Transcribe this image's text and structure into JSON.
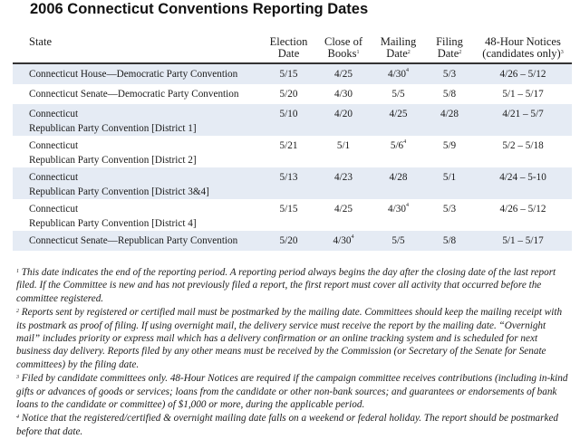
{
  "title": "2006 Connecticut Conventions Reporting Dates",
  "headers": {
    "state": "State",
    "election_a": "Election",
    "election_b": "Date",
    "close_a": "Close of",
    "close_b": "Books",
    "close_sup": "1",
    "mailing_a": "Mailing",
    "mailing_b": "Date",
    "mailing_sup": "2",
    "filing_a": "Filing",
    "filing_b": "Date",
    "filing_sup": "2",
    "notices_a": "48-Hour Notices",
    "notices_b": "(candidates only)",
    "notices_sup": "3"
  },
  "rows": [
    {
      "state_a": "Connecticut House—Democratic Party Convention",
      "state_b": "",
      "election": "5/15",
      "close": "4/25",
      "mailing": "4/30",
      "mailing_sup": "4",
      "filing": "5/3",
      "notices": "4/26 – 5/12"
    },
    {
      "state_a": "Connecticut Senate—Democratic Party Convention",
      "state_b": "",
      "election": "5/20",
      "close": "4/30",
      "mailing": "5/5",
      "mailing_sup": "",
      "filing": "5/8",
      "notices": "5/1 – 5/17"
    },
    {
      "state_a": "Connecticut",
      "state_b": "Republican Party Convention [District 1]",
      "election": "5/10",
      "close": "4/20",
      "mailing": "4/25",
      "mailing_sup": "",
      "filing": "4/28",
      "notices": "4/21 – 5/7"
    },
    {
      "state_a": "Connecticut",
      "state_b": "Republican Party Convention [District 2]",
      "election": "5/21",
      "close": "5/1",
      "mailing": "5/6",
      "mailing_sup": "4",
      "filing": "5/9",
      "notices": "5/2 – 5/18"
    },
    {
      "state_a": "Connecticut",
      "state_b": "Republican Party Convention [District 3&4]",
      "election": "5/13",
      "close": "4/23",
      "mailing": "4/28",
      "mailing_sup": "",
      "filing": "5/1",
      "notices": "4/24 – 5-10"
    },
    {
      "state_a": "Connecticut",
      "state_b": "Republican Party Convention [District 4]",
      "election": "5/15",
      "close": "4/25",
      "mailing": "4/30",
      "mailing_sup": "4",
      "filing": "5/3",
      "notices": "4/26 – 5/12"
    },
    {
      "state_a": "Connecticut Senate—Republican Party Convention",
      "state_b": "",
      "election": "5/20",
      "close": "4/30",
      "close_sup": "4",
      "mailing": "5/5",
      "mailing_sup": "",
      "filing": "5/8",
      "notices": "5/1 – 5/17"
    }
  ],
  "footnotes": [
    {
      "mark": "1",
      "text": "This date indicates the end of the reporting period.  A reporting period always begins the day after the closing date of the last report filed.  If the Committee is new and has not previously filed a report, the first report must cover all activity that occurred before the committee registered."
    },
    {
      "mark": "2",
      "text": "Reports sent by registered or certified mail must be postmarked by the mailing date.  Committees should keep the mailing receipt with its postmark as proof of filing.  If using overnight mail, the delivery service must receive the report by the mailing date.  “Overnight mail” includes priority or express mail which has a delivery confirmation or an online tracking system and is scheduled for next business day delivery.  Reports filed by any other means must be received by the Commission (or Secretary of the Senate for Senate committees) by the filing date."
    },
    {
      "mark": "3",
      "text": "Filed by candidate committees only.  48-Hour Notices are required if the campaign committee receives contributions (including in-kind gifts or advances of goods or services; loans from the candidate or other non-bank sources; and guarantees or endorsements of bank loans to the candidate or committee) of $1,000 or more, during the applicable period."
    },
    {
      "mark": "4",
      "text": "Notice that the registered/certified & overnight mailing date falls on a weekend or federal holiday.  The report should be postmarked before that date."
    }
  ]
}
